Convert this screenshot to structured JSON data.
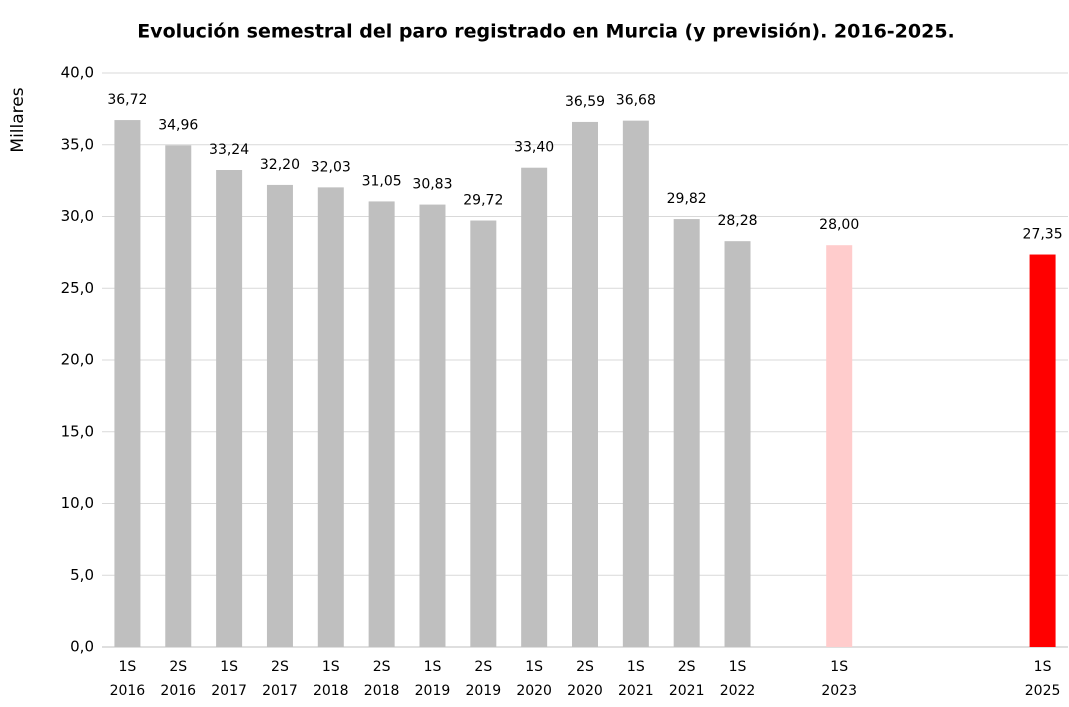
{
  "chart_data": {
    "type": "bar",
    "title": "Evolución semestral del paro registrado en Murcia (y previsión). 2016-2025.",
    "y_label": "Millares",
    "categories": [
      "1S 2016",
      "2S 2016",
      "1S 2017",
      "2S 2017",
      "1S 2018",
      "2S 2018",
      "1S 2019",
      "2S 2019",
      "1S 2020",
      "2S 2020",
      "1S 2021",
      "2S 2021",
      "1S 2022",
      null,
      "1S 2023",
      null,
      null,
      null,
      "1S 2025"
    ],
    "values": [
      36.72,
      34.96,
      33.24,
      32.2,
      32.03,
      31.05,
      30.83,
      29.72,
      33.4,
      36.59,
      36.68,
      29.82,
      28.28,
      null,
      28.0,
      null,
      null,
      null,
      27.35
    ],
    "value_labels": [
      "36,72",
      "34,96",
      "33,24",
      "32,20",
      "32,03",
      "31,05",
      "30,83",
      "29,72",
      "33,40",
      "36,59",
      "36,68",
      "29,82",
      "28,28",
      null,
      "28,00",
      null,
      null,
      null,
      "27,35"
    ],
    "colors": [
      "#bfbfbf",
      "#bfbfbf",
      "#bfbfbf",
      "#bfbfbf",
      "#bfbfbf",
      "#bfbfbf",
      "#bfbfbf",
      "#bfbfbf",
      "#bfbfbf",
      "#bfbfbf",
      "#bfbfbf",
      "#bfbfbf",
      "#bfbfbf",
      null,
      "#ffcccc",
      null,
      null,
      null,
      "#ff0000"
    ],
    "ylim": [
      0,
      40
    ],
    "yticks": [
      {
        "value": 0,
        "label": "0,0"
      },
      {
        "value": 5,
        "label": "5,0"
      },
      {
        "value": 10,
        "label": "10,0"
      },
      {
        "value": 15,
        "label": "15,0"
      },
      {
        "value": 20,
        "label": "20,0"
      },
      {
        "value": 25,
        "label": "25,0"
      },
      {
        "value": 30,
        "label": "30,0"
      },
      {
        "value": 35,
        "label": "35,0"
      },
      {
        "value": 40,
        "label": "40,0"
      }
    ],
    "grid": true
  }
}
